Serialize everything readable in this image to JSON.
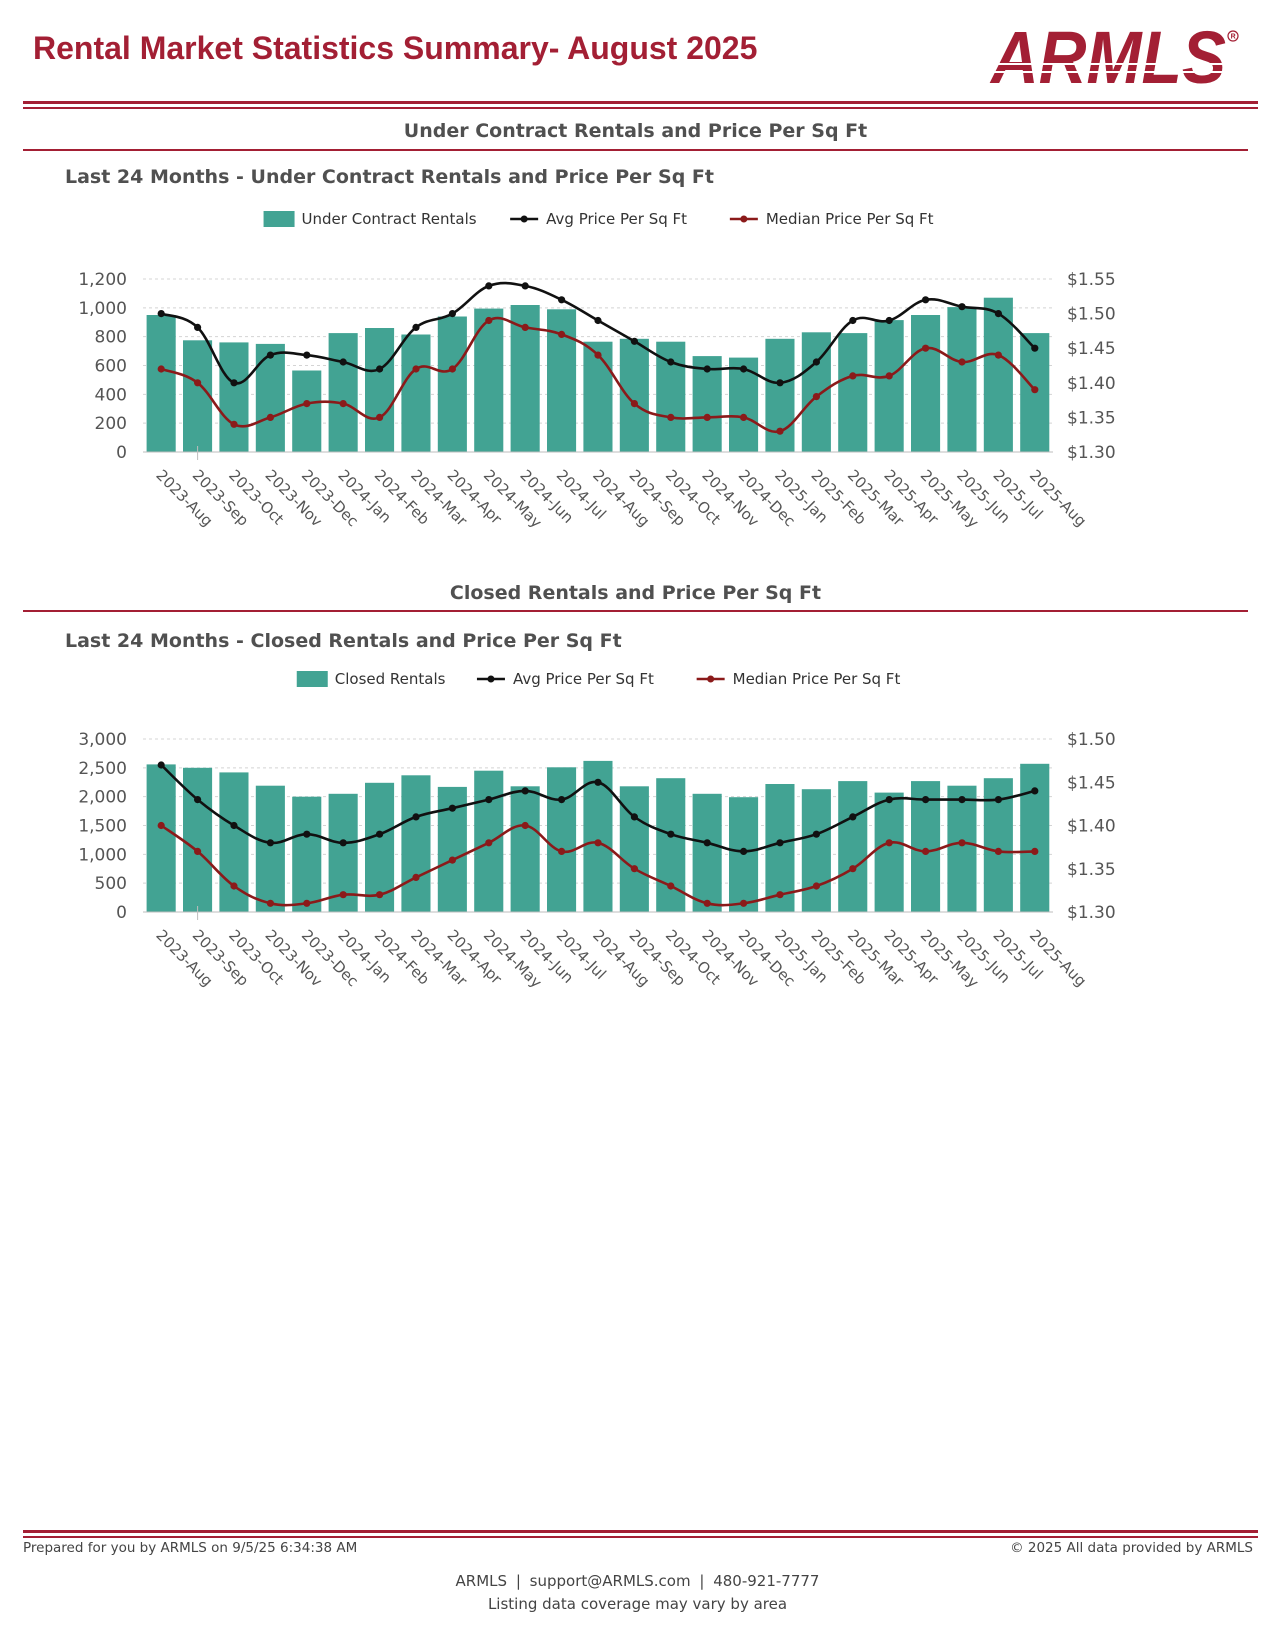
{
  "header": {
    "title": "Rental Market Statistics Summary- August 2025",
    "logo_text": "ARMLS"
  },
  "colors": {
    "brand": "#a31f34",
    "bar": "#42a393",
    "avg_line": "#111111",
    "median_line": "#8b1a1a",
    "grid": "#d4d4d4",
    "axis_text": "#555555"
  },
  "sections": [
    {
      "title": "Under Contract Rentals and Price Per Sq Ft",
      "subtitle": "Last 24 Months - Under Contract Rentals and Price Per Sq Ft"
    },
    {
      "title": "Closed Rentals and Price Per Sq Ft",
      "subtitle": "Last 24 Months - Closed Rentals and Price Per Sq Ft"
    }
  ],
  "chart_data": [
    {
      "type": "bar",
      "title": "Last 24 Months - Under Contract Rentals and Price Per Sq Ft",
      "categories": [
        "2023-Aug",
        "2023-Sep",
        "2023-Oct",
        "2023-Nov",
        "2023-Dec",
        "2024-Jan",
        "2024-Feb",
        "2024-Mar",
        "2024-Apr",
        "2024-May",
        "2024-Jun",
        "2024-Jul",
        "2024-Aug",
        "2024-Sep",
        "2024-Oct",
        "2024-Nov",
        "2024-Dec",
        "2025-Jan",
        "2025-Feb",
        "2025-Mar",
        "2025-Apr",
        "2025-May",
        "2025-Jun",
        "2025-Jul",
        "2025-Aug"
      ],
      "legend_position": "top-center",
      "grid": true,
      "left_axis": {
        "ylim": [
          0,
          1200
        ],
        "ticks": [
          0,
          200,
          400,
          600,
          800,
          1000,
          1200
        ],
        "tick_labels": [
          "0",
          "200",
          "400",
          "600",
          "800",
          "1,000",
          "1,200"
        ]
      },
      "right_axis": {
        "ylim": [
          1.3,
          1.55
        ],
        "ticks": [
          1.3,
          1.35,
          1.4,
          1.45,
          1.5,
          1.55
        ],
        "tick_labels": [
          "$1.30",
          "$1.35",
          "$1.40",
          "$1.45",
          "$1.50",
          "$1.55"
        ]
      },
      "series": [
        {
          "name": "Under Contract Rentals",
          "kind": "bar",
          "axis": "left",
          "values": [
            950,
            775,
            760,
            750,
            565,
            825,
            860,
            815,
            940,
            995,
            1020,
            990,
            765,
            785,
            765,
            665,
            655,
            785,
            830,
            825,
            915,
            950,
            1005,
            1070,
            825
          ]
        },
        {
          "name": "Avg Price Per Sq Ft",
          "kind": "line",
          "axis": "right",
          "values": [
            1.5,
            1.48,
            1.4,
            1.44,
            1.44,
            1.43,
            1.42,
            1.48,
            1.5,
            1.54,
            1.54,
            1.52,
            1.49,
            1.46,
            1.43,
            1.42,
            1.42,
            1.4,
            1.43,
            1.49,
            1.49,
            1.52,
            1.51,
            1.5,
            1.45
          ]
        },
        {
          "name": "Median Price Per Sq Ft",
          "kind": "line",
          "axis": "right",
          "values": [
            1.42,
            1.4,
            1.34,
            1.35,
            1.37,
            1.37,
            1.35,
            1.42,
            1.42,
            1.49,
            1.48,
            1.47,
            1.44,
            1.37,
            1.35,
            1.35,
            1.35,
            1.33,
            1.38,
            1.41,
            1.41,
            1.45,
            1.43,
            1.44,
            1.39
          ]
        }
      ]
    },
    {
      "type": "bar",
      "title": "Last 24 Months - Closed Rentals and Price Per Sq Ft",
      "categories": [
        "2023-Aug",
        "2023-Sep",
        "2023-Oct",
        "2023-Nov",
        "2023-Dec",
        "2024-Jan",
        "2024-Feb",
        "2024-Mar",
        "2024-Apr",
        "2024-May",
        "2024-Jun",
        "2024-Jul",
        "2024-Aug",
        "2024-Sep",
        "2024-Oct",
        "2024-Nov",
        "2024-Dec",
        "2025-Jan",
        "2025-Feb",
        "2025-Mar",
        "2025-Apr",
        "2025-May",
        "2025-Jun",
        "2025-Jul",
        "2025-Aug"
      ],
      "legend_position": "top-center",
      "grid": true,
      "left_axis": {
        "ylim": [
          0,
          3000
        ],
        "ticks": [
          0,
          500,
          1000,
          1500,
          2000,
          2500,
          3000
        ],
        "tick_labels": [
          "0",
          "500",
          "1,000",
          "1,500",
          "2,000",
          "2,500",
          "3,000"
        ]
      },
      "right_axis": {
        "ylim": [
          1.3,
          1.5
        ],
        "ticks": [
          1.3,
          1.35,
          1.4,
          1.45,
          1.5
        ],
        "tick_labels": [
          "$1.30",
          "$1.35",
          "$1.40",
          "$1.45",
          "$1.50"
        ]
      },
      "series": [
        {
          "name": "Closed Rentals",
          "kind": "bar",
          "axis": "left",
          "values": [
            2560,
            2500,
            2420,
            2190,
            2000,
            2050,
            2240,
            2370,
            2170,
            2450,
            2180,
            2510,
            2620,
            2180,
            2320,
            2050,
            1990,
            2220,
            2130,
            2270,
            2070,
            2270,
            2190,
            2320,
            2570
          ]
        },
        {
          "name": "Avg Price Per Sq Ft",
          "kind": "line",
          "axis": "right",
          "values": [
            1.47,
            1.43,
            1.4,
            1.38,
            1.39,
            1.38,
            1.39,
            1.41,
            1.42,
            1.43,
            1.44,
            1.43,
            1.45,
            1.41,
            1.39,
            1.38,
            1.37,
            1.38,
            1.39,
            1.41,
            1.43,
            1.43,
            1.43,
            1.43,
            1.44
          ]
        },
        {
          "name": "Median Price Per Sq Ft",
          "kind": "line",
          "axis": "right",
          "values": [
            1.4,
            1.37,
            1.33,
            1.31,
            1.31,
            1.32,
            1.32,
            1.34,
            1.36,
            1.38,
            1.4,
            1.37,
            1.38,
            1.35,
            1.33,
            1.31,
            1.31,
            1.32,
            1.33,
            1.35,
            1.38,
            1.37,
            1.38,
            1.37,
            1.37
          ]
        }
      ]
    }
  ],
  "footer": {
    "prepared": "Prepared for you by ARMLS on 9/5/25 6:34:38 AM",
    "copyright": "© 2025 All data provided by ARMLS",
    "org": "ARMLS",
    "email": "support@ARMLS.com",
    "phone": "480-921-7777",
    "separator": "|",
    "note": "Listing data coverage may vary by area"
  }
}
